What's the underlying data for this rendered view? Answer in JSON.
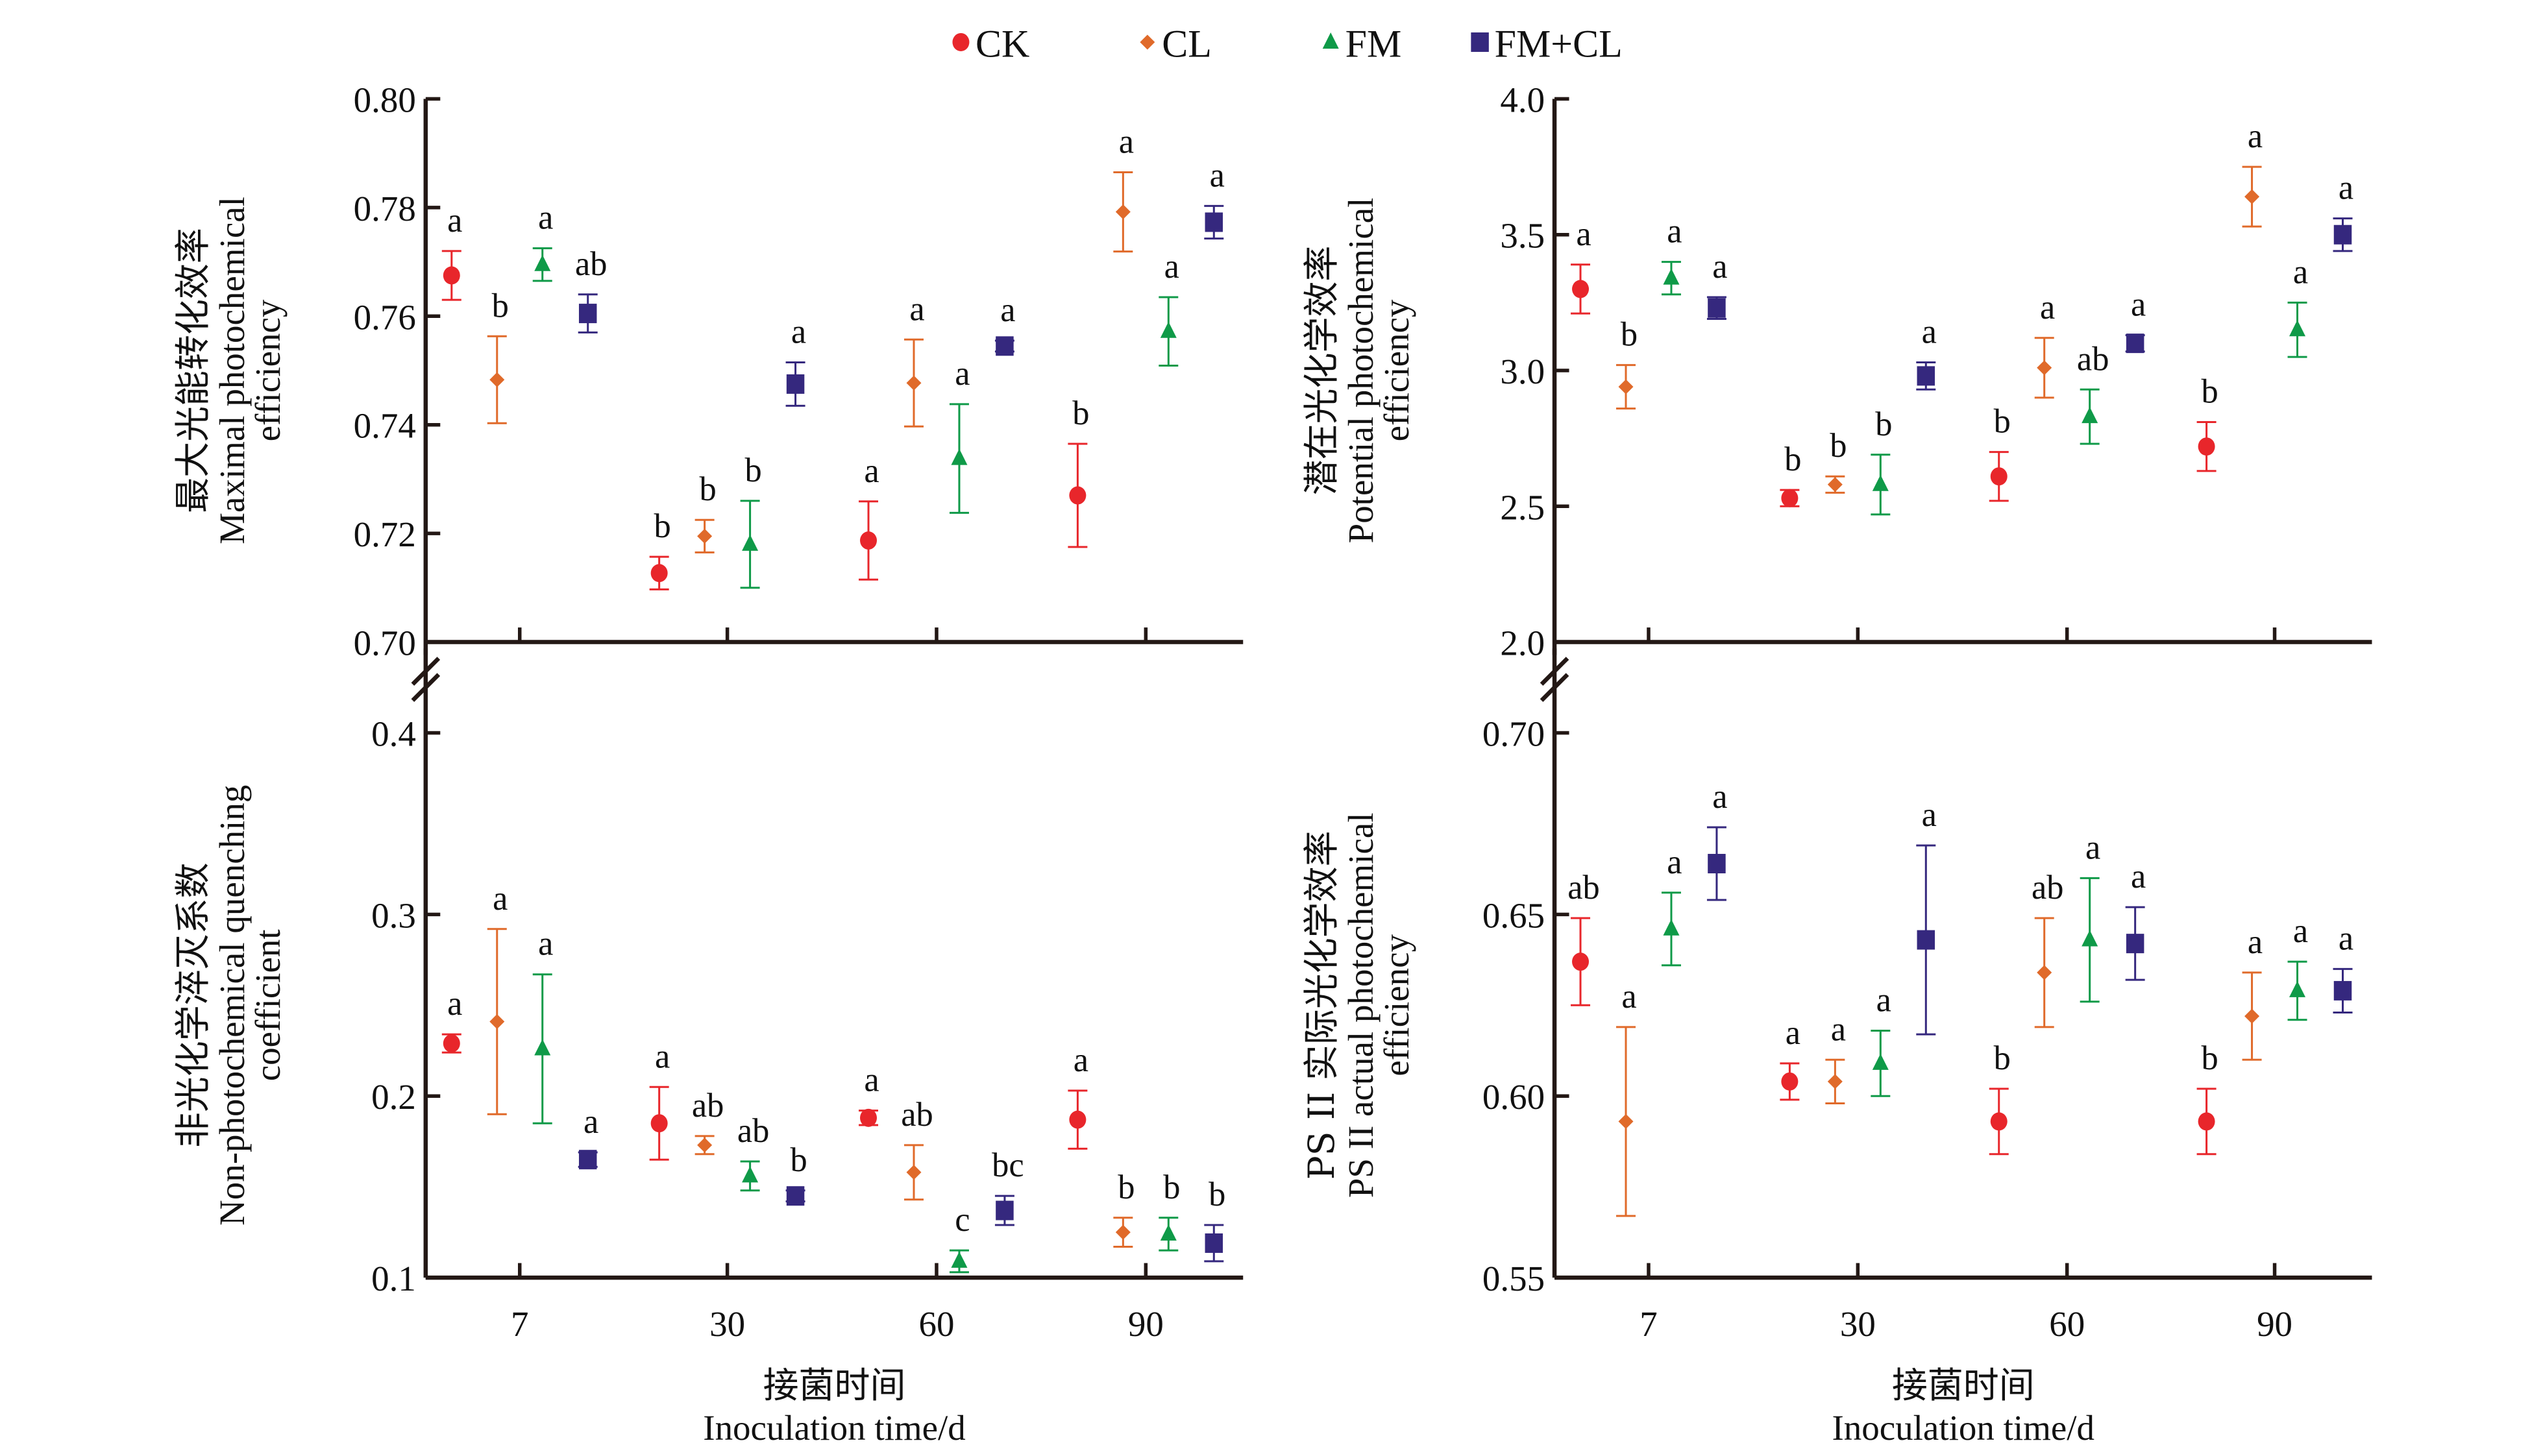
{
  "legend": {
    "placement": "top-center",
    "items": [
      {
        "key": "CK",
        "label": "CK",
        "marker": "circle",
        "color": "#e8262b"
      },
      {
        "key": "CL",
        "label": "CL",
        "marker": "diamond",
        "color": "#e06a2a"
      },
      {
        "key": "FM",
        "label": "FM",
        "marker": "triangle",
        "color": "#0f9a48"
      },
      {
        "key": "FMCL",
        "label": "FM+CL",
        "marker": "square",
        "color": "#35287e"
      }
    ]
  },
  "x_axis": {
    "title_zh": "接菌时间",
    "title_en": "Inoculation time/d"
  },
  "chart_data": [
    {
      "id": "maximal",
      "type": "scatter",
      "title": "",
      "ylabel_zh": "最大光能转化效率",
      "ylabel_en": [
        "Maximal photochemical",
        "efficiency"
      ],
      "xlabel": "接菌时间 Inoculation time/d",
      "categories": [
        "7",
        "30",
        "60",
        "90"
      ],
      "ylim": [
        0.7,
        0.8
      ],
      "yticks": [
        "0.70",
        "0.72",
        "0.74",
        "0.76",
        "0.78",
        "0.80"
      ],
      "ytick_values": [
        0.7,
        0.72,
        0.74,
        0.76,
        0.78,
        0.8
      ],
      "axis_break_below": false,
      "series": [
        {
          "name": "CK",
          "values": [
            0.7675,
            0.7127,
            0.7187,
            0.727
          ],
          "errors": [
            0.0045,
            0.003,
            0.0072,
            0.0095
          ],
          "letters": [
            "a",
            "b",
            "a",
            "b"
          ]
        },
        {
          "name": "CL",
          "values": [
            0.7483,
            0.7195,
            0.7477,
            0.7792
          ],
          "errors": [
            0.008,
            0.003,
            0.008,
            0.0073
          ],
          "letters": [
            "b",
            "b",
            "a",
            "a"
          ]
        },
        {
          "name": "FM",
          "values": [
            0.7695,
            0.718,
            0.7338,
            0.7572
          ],
          "errors": [
            0.003,
            0.008,
            0.01,
            0.0063
          ],
          "letters": [
            "a",
            "b",
            "a",
            "a"
          ]
        },
        {
          "name": "FM+CL",
          "values": [
            0.7605,
            0.7475,
            0.7545,
            0.7773
          ],
          "errors": [
            0.0035,
            0.004,
            0.001,
            0.003
          ],
          "letters": [
            "ab",
            "a",
            "a",
            "a"
          ]
        }
      ]
    },
    {
      "id": "potential",
      "type": "scatter",
      "title": "",
      "ylabel_zh": "潜在光化学效率",
      "ylabel_en": [
        "Potential photochemical",
        "efficiency"
      ],
      "xlabel": "接菌时间 Inoculation time/d",
      "categories": [
        "7",
        "30",
        "60",
        "90"
      ],
      "ylim": [
        2.0,
        4.0
      ],
      "yticks": [
        "2.0",
        "2.5",
        "3.0",
        "3.5",
        "4.0"
      ],
      "ytick_values": [
        2.0,
        2.5,
        3.0,
        3.5,
        4.0
      ],
      "axis_break_below": false,
      "series": [
        {
          "name": "CK",
          "values": [
            3.3,
            2.53,
            2.61,
            2.72
          ],
          "errors": [
            0.09,
            0.03,
            0.09,
            0.09
          ],
          "letters": [
            "a",
            "b",
            "b",
            "b"
          ]
        },
        {
          "name": "CL",
          "values": [
            2.94,
            2.58,
            3.01,
            3.64
          ],
          "errors": [
            0.08,
            0.03,
            0.11,
            0.11
          ],
          "letters": [
            "b",
            "b",
            "a",
            "a"
          ]
        },
        {
          "name": "FM",
          "values": [
            3.34,
            2.58,
            2.83,
            3.15
          ],
          "errors": [
            0.06,
            0.11,
            0.1,
            0.1
          ],
          "letters": [
            "a",
            "b",
            "ab",
            "a"
          ]
        },
        {
          "name": "FM+CL",
          "values": [
            3.23,
            2.98,
            3.1,
            3.5
          ],
          "errors": [
            0.04,
            0.05,
            0.03,
            0.06
          ],
          "letters": [
            "a",
            "a",
            "a",
            "a"
          ]
        }
      ]
    },
    {
      "id": "npq",
      "type": "scatter",
      "title": "",
      "ylabel_zh": "非光化学淬灭系数",
      "ylabel_en": [
        "Non-photochemical quenching",
        "coefficient"
      ],
      "xlabel": "接菌时间 Inoculation time/d",
      "categories": [
        "7",
        "30",
        "60",
        "90"
      ],
      "ylim": [
        0.1,
        0.4
      ],
      "yticks": [
        "0.1",
        "0.2",
        "0.3",
        "0.4"
      ],
      "ytick_values": [
        0.1,
        0.2,
        0.3,
        0.4
      ],
      "axis_break_above": true,
      "series": [
        {
          "name": "CK",
          "values": [
            0.229,
            0.185,
            0.188,
            0.187
          ],
          "errors": [
            0.005,
            0.02,
            0.004,
            0.016
          ],
          "letters": [
            "a",
            "a",
            "a",
            "a"
          ]
        },
        {
          "name": "CL",
          "values": [
            0.241,
            0.173,
            0.158,
            0.125
          ],
          "errors": [
            0.051,
            0.005,
            0.015,
            0.008
          ],
          "letters": [
            "a",
            "ab",
            "ab",
            "b"
          ]
        },
        {
          "name": "FM",
          "values": [
            0.226,
            0.156,
            0.109,
            0.124
          ],
          "errors": [
            0.041,
            0.008,
            0.006,
            0.009
          ],
          "letters": [
            "a",
            "ab",
            "c",
            "b"
          ]
        },
        {
          "name": "FM+CL",
          "values": [
            0.165,
            0.145,
            0.137,
            0.119
          ],
          "errors": [
            0.004,
            0.003,
            0.008,
            0.01
          ],
          "letters": [
            "a",
            "b",
            "bc",
            "b"
          ]
        }
      ]
    },
    {
      "id": "psii",
      "type": "scatter",
      "title": "",
      "ylabel_zh": "PS II 实际光化学效率",
      "ylabel_en": [
        "PS II  actual photochemical",
        "efficiency"
      ],
      "xlabel": "接菌时间 Inoculation time/d",
      "categories": [
        "7",
        "30",
        "60",
        "90"
      ],
      "ylim": [
        0.55,
        0.7
      ],
      "yticks": [
        "0.55",
        "0.60",
        "0.65",
        "0.70"
      ],
      "ytick_values": [
        0.55,
        0.6,
        0.65,
        0.7
      ],
      "axis_break_above": true,
      "series": [
        {
          "name": "CK",
          "values": [
            0.637,
            0.604,
            0.593,
            0.593
          ],
          "errors": [
            0.012,
            0.005,
            0.009,
            0.009
          ],
          "letters": [
            "ab",
            "a",
            "b",
            "b"
          ]
        },
        {
          "name": "CL",
          "values": [
            0.593,
            0.604,
            0.634,
            0.622
          ],
          "errors": [
            0.026,
            0.006,
            0.015,
            0.012
          ],
          "letters": [
            "a",
            "a",
            "ab",
            "a"
          ]
        },
        {
          "name": "FM",
          "values": [
            0.646,
            0.609,
            0.643,
            0.629
          ],
          "errors": [
            0.01,
            0.009,
            0.017,
            0.008
          ],
          "letters": [
            "a",
            "a",
            "a",
            "a"
          ]
        },
        {
          "name": "FM+CL",
          "values": [
            0.664,
            0.643,
            0.642,
            0.629
          ],
          "errors": [
            0.01,
            0.026,
            0.01,
            0.006
          ],
          "letters": [
            "a",
            "a",
            "a",
            "a"
          ]
        }
      ]
    }
  ]
}
